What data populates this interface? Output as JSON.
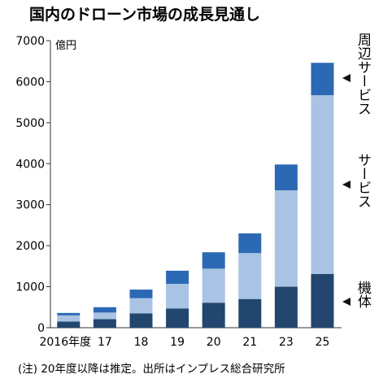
{
  "chart_data": {
    "type": "bar",
    "stacked": true,
    "title": "国内のドローン市場の成長見通し",
    "unit": "億円",
    "categories": [
      "2016年度",
      "17",
      "18",
      "19",
      "20",
      "21",
      "23",
      "25"
    ],
    "series": [
      {
        "name": "機体",
        "color": "#22466e",
        "values": [
          150,
          210,
          350,
          470,
          610,
          700,
          1000,
          1310
        ]
      },
      {
        "name": "サービス",
        "color": "#a8c3e4",
        "values": [
          150,
          160,
          370,
          600,
          830,
          1120,
          2350,
          4360
        ]
      },
      {
        "name": "周辺サービス",
        "color": "#2b69b4",
        "values": [
          60,
          130,
          210,
          320,
          400,
          480,
          630,
          790
        ]
      }
    ],
    "ylim": [
      0,
      7000
    ],
    "yticks": [
      0,
      1000,
      2000,
      3000,
      4000,
      5000,
      6000,
      7000
    ],
    "grid": false,
    "legend": "right, inline labels",
    "note": "(注) 20年度以降は推定。出所はインプレス総合研究所"
  }
}
